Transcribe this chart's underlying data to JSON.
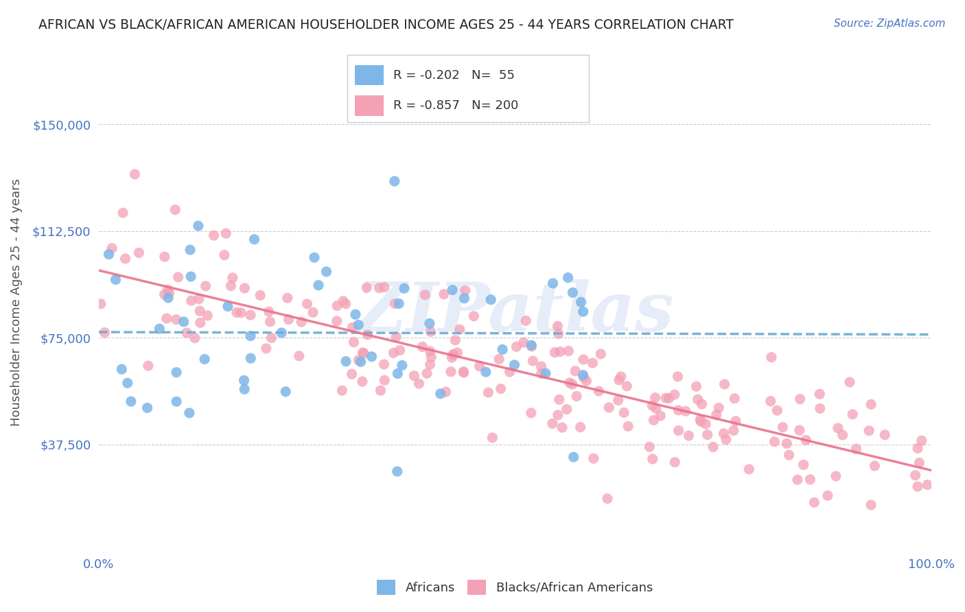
{
  "title": "AFRICAN VS BLACK/AFRICAN AMERICAN HOUSEHOLDER INCOME AGES 25 - 44 YEARS CORRELATION CHART",
  "source": "Source: ZipAtlas.com",
  "xlabel": "",
  "ylabel": "Householder Income Ages 25 - 44 years",
  "xlim": [
    0,
    1
  ],
  "ylim": [
    0,
    175000
  ],
  "yticks": [
    37500,
    75000,
    112500,
    150000
  ],
  "ytick_labels": [
    "$37,500",
    "$75,000",
    "$112,500",
    "$150,000"
  ],
  "xticks": [
    0,
    1
  ],
  "xtick_labels": [
    "0.0%",
    "100.0%"
  ],
  "africans_color": "#7eb6e8",
  "blacks_color": "#f4a0b5",
  "africans_line_color": "#6aaad4",
  "blacks_line_color": "#e8728a",
  "R_africans": -0.202,
  "N_africans": 55,
  "R_blacks": -0.857,
  "N_blacks": 200,
  "legend_label_africans": "Africans",
  "legend_label_blacks": "Blacks/African Americans",
  "watermark": "ZIPatlas",
  "background_color": "#ffffff",
  "title_color": "#333333",
  "axis_label_color": "#555555",
  "tick_color": "#4472c4",
  "annotation_color": "#4472c4",
  "grid_color": "#cccccc",
  "africans_seed": 42,
  "blacks_seed": 123
}
